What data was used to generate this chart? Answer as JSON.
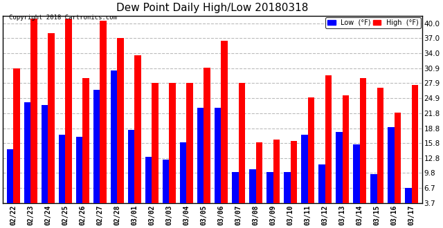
{
  "title": "Dew Point Daily High/Low 20180318",
  "copyright": "Copyright 2018 Cartronics.com",
  "dates": [
    "02/22",
    "02/23",
    "02/24",
    "02/25",
    "02/26",
    "02/27",
    "02/28",
    "03/01",
    "03/02",
    "03/03",
    "03/04",
    "03/05",
    "03/06",
    "03/07",
    "03/08",
    "03/09",
    "03/10",
    "03/11",
    "03/12",
    "03/13",
    "03/14",
    "03/15",
    "03/16",
    "03/17"
  ],
  "high": [
    30.9,
    41.0,
    38.0,
    41.0,
    29.0,
    40.5,
    37.0,
    33.5,
    28.0,
    28.0,
    28.0,
    31.0,
    36.5,
    28.0,
    16.0,
    16.5,
    16.2,
    25.0,
    29.5,
    25.5,
    29.0,
    27.0,
    22.0,
    27.5
  ],
  "low": [
    14.5,
    24.0,
    23.5,
    17.5,
    17.0,
    26.5,
    30.5,
    18.5,
    13.0,
    12.5,
    16.0,
    23.0,
    23.0,
    10.0,
    10.5,
    10.0,
    10.0,
    17.5,
    11.5,
    18.0,
    15.5,
    9.5,
    19.0,
    6.7
  ],
  "high_color": "#ff0000",
  "low_color": "#0000ff",
  "bg_color": "#ffffff",
  "plot_bg_color": "#ffffff",
  "grid_color": "#bbbbbb",
  "yticks": [
    3.7,
    6.7,
    9.8,
    12.8,
    15.8,
    18.8,
    21.8,
    24.9,
    27.9,
    30.9,
    34.0,
    37.0,
    40.0
  ],
  "ylim_min": 3.7,
  "ylim_max": 41.5,
  "bar_width": 0.38,
  "legend_low_label": "Low  (°F)",
  "legend_high_label": "High  (°F)",
  "border_color": "#000000"
}
